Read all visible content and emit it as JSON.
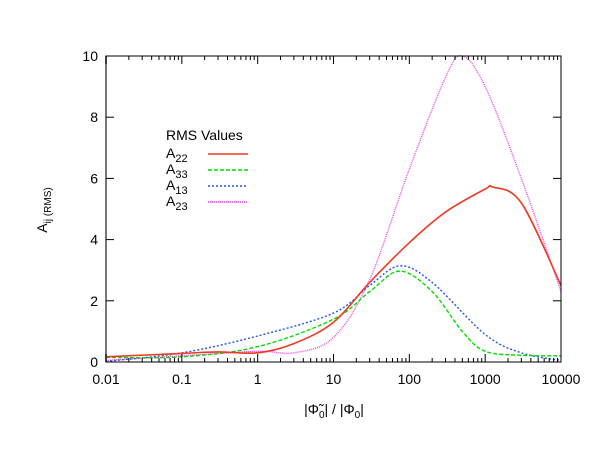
{
  "chart_data": {
    "type": "line",
    "title": "",
    "xlabel": "|Φ̃₀| / |Φ₀|",
    "xlabel_parts": {
      "a": "|Φ̃",
      "a_sub": "0",
      "b": "| / |Φ",
      "b_sub": "0",
      "c": "|"
    },
    "ylabel": "A_ij (RMS)",
    "ylabel_parts": {
      "main": "A",
      "sub": "ij (RMS)"
    },
    "xscale": "log",
    "xlim": [
      0.01,
      10000
    ],
    "ylim": [
      0,
      10
    ],
    "x_ticks": [
      "0.01",
      "0.1",
      "1",
      "10",
      "100",
      "1000",
      "10000"
    ],
    "y_ticks": [
      "0",
      "2",
      "4",
      "6",
      "8",
      "10"
    ],
    "grid": false,
    "legend": {
      "title": "RMS Values",
      "position": "upper-left-inside"
    },
    "series": [
      {
        "name": "A22",
        "label_main": "A",
        "label_sub": "22",
        "color": "#ee3b24",
        "style": "solid",
        "x": [
          0.01,
          0.1,
          0.3,
          1,
          3,
          10,
          30,
          100,
          300,
          1000,
          1260,
          3000,
          10000
        ],
        "values": [
          0.17,
          0.28,
          0.33,
          0.3,
          0.6,
          1.3,
          2.6,
          3.9,
          4.9,
          5.65,
          5.72,
          5.2,
          2.5
        ]
      },
      {
        "name": "A33",
        "label_main": "A",
        "label_sub": "33",
        "color": "#00dd00",
        "style": "dashed",
        "x": [
          0.01,
          0.1,
          1,
          10,
          30,
          75,
          200,
          500,
          1000,
          3000,
          10000
        ],
        "values": [
          0.15,
          0.17,
          0.5,
          1.4,
          2.3,
          2.97,
          2.3,
          1.0,
          0.35,
          0.22,
          0.2
        ]
      },
      {
        "name": "A13",
        "label_main": "A",
        "label_sub": "13",
        "color": "#2255ee",
        "style": "dotted",
        "x": [
          0.01,
          0.1,
          1,
          10,
          30,
          75,
          200,
          1000,
          3000,
          10000
        ],
        "values": [
          0.02,
          0.3,
          0.85,
          1.6,
          2.5,
          3.14,
          2.6,
          0.9,
          0.3,
          0.05
        ]
      },
      {
        "name": "A23",
        "label_main": "A",
        "label_sub": "23",
        "color": "#ee44ee",
        "style": "fine-dotted",
        "x": [
          0.01,
          0.1,
          1,
          3,
          10,
          30,
          100,
          300,
          500,
          1000,
          3000,
          10000
        ],
        "values": [
          0.05,
          0.2,
          0.35,
          0.3,
          0.8,
          2.7,
          6.3,
          9.3,
          10.0,
          9.0,
          6.0,
          2.3
        ]
      }
    ]
  }
}
